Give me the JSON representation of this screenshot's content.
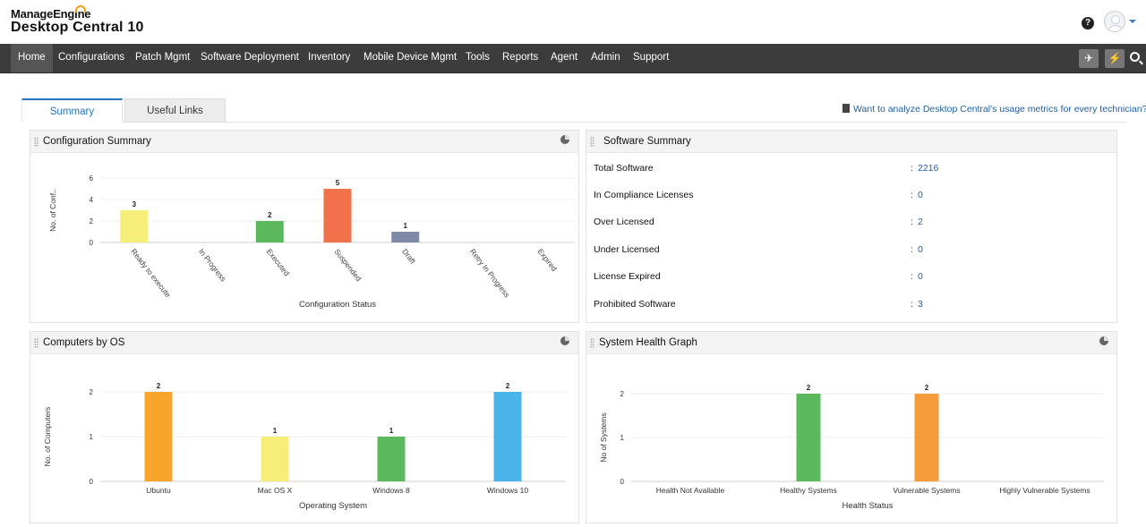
{
  "brand": {
    "top": "ManageEngine",
    "product": "Desktop Central 10"
  },
  "header": {
    "help_icon": "?"
  },
  "nav": {
    "items": [
      "Home",
      "Configurations",
      "Patch Mgmt",
      "Software Deployment",
      "Inventory",
      "Mobile Device Mgmt",
      "Tools",
      "Reports",
      "Agent",
      "Admin",
      "Support"
    ],
    "active": "Home",
    "rocket_glyph": "✈",
    "bolt_glyph": "⚡"
  },
  "tabs": [
    {
      "label": "Summary",
      "active": true
    },
    {
      "label": "Useful Links",
      "active": false
    }
  ],
  "usage_link": "Want to analyze Desktop Central's usage metrics for every technician?",
  "panels": {
    "config_summary": {
      "title": "Configuration Summary"
    },
    "software_summary": {
      "title": "Software Summary",
      "rows": [
        {
          "label": "Total Software",
          "value": "2216"
        },
        {
          "label": "In Compliance Licenses",
          "value": "0"
        },
        {
          "label": "Over Licensed",
          "value": "2"
        },
        {
          "label": "Under Licensed",
          "value": "0"
        },
        {
          "label": "License Expired",
          "value": "0"
        },
        {
          "label": "Prohibited Software",
          "value": "3"
        }
      ]
    },
    "computers_os": {
      "title": "Computers by OS"
    },
    "health_graph": {
      "title": "System Health Graph"
    }
  },
  "colon": ":",
  "colors": {
    "accent": "#2574bd",
    "nav_bg": "#3c3c3c",
    "link": "#1f5fa6"
  },
  "chart_data": [
    {
      "type": "bar",
      "title": "",
      "xlabel": "Configuration Status",
      "ylabel": "No. of Conf..",
      "ylim": [
        0,
        6
      ],
      "yticks": [
        "0",
        "2",
        "4",
        "6"
      ],
      "grid": true,
      "categories": [
        "Ready to execute",
        "In Progress",
        "Executed",
        "Suspended",
        "Draft",
        "Retry In Progress",
        "Expired"
      ],
      "values": [
        3,
        0,
        2,
        5,
        1,
        0,
        0
      ],
      "labels": [
        "3",
        "",
        "2",
        "5",
        "1",
        "",
        ""
      ],
      "colors": [
        "#f5ef79",
        "#cccccc",
        "#5bb85d",
        "#f0714a",
        "#7e8aa8",
        "#cccccc",
        "#cccccc"
      ]
    },
    {
      "type": "bar",
      "title": "",
      "xlabel": "Operating System",
      "ylabel": "No. of Computers",
      "ylim": [
        0,
        2
      ],
      "yticks": [
        "0",
        "1",
        "2"
      ],
      "grid": true,
      "categories": [
        "Ubuntu",
        "Mac OS X",
        "Windows 8",
        "Windows 10"
      ],
      "values": [
        2,
        1,
        1,
        2
      ],
      "labels": [
        "2",
        "1",
        "1",
        "2"
      ],
      "colors": [
        "#f8a52b",
        "#f5ef79",
        "#5bb85d",
        "#4ab3ea"
      ]
    },
    {
      "type": "bar",
      "title": "",
      "xlabel": "Health Status",
      "ylabel": "No of Systems",
      "ylim": [
        0,
        2
      ],
      "yticks": [
        "0",
        "1",
        "2"
      ],
      "grid": true,
      "categories": [
        "Health Not Available",
        "Healthy Systems",
        "Vulnerable Systems",
        "Highly Vulnerable Systems"
      ],
      "values": [
        0,
        2,
        2,
        0
      ],
      "labels": [
        "",
        "2",
        "2",
        ""
      ],
      "colors": [
        "#cccccc",
        "#5bb85d",
        "#f69b3a",
        "#cccccc"
      ]
    }
  ]
}
